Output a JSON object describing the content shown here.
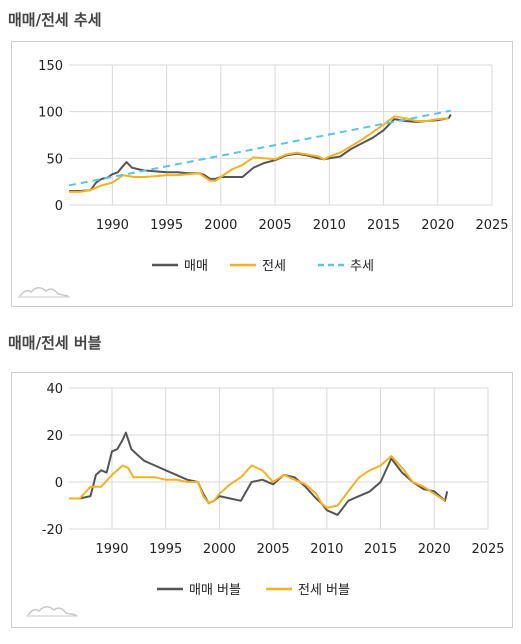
{
  "colors": {
    "sales": "#555555",
    "jeonse": "#f5b21e",
    "trend": "#5cc4e4",
    "grid": "#d9d9d9"
  },
  "chart_data": [
    {
      "type": "line",
      "title": "매매/전세 추세",
      "xlim": [
        1986,
        2025
      ],
      "ylim": [
        0,
        150
      ],
      "x_ticks": [
        1990,
        1995,
        2000,
        2005,
        2010,
        2015,
        2020,
        2025
      ],
      "y_ticks": [
        0,
        50,
        100,
        150
      ],
      "grid": true,
      "legend_position": "bottom",
      "series": [
        {
          "name": "매매",
          "color": "#555555",
          "dash": false,
          "x": [
            1986,
            1987,
            1988,
            1988.5,
            1989,
            1989.5,
            1990,
            1990.5,
            1991,
            1991.3,
            1991.8,
            1992.5,
            1993,
            1994,
            1995,
            1996,
            1997,
            1998,
            1998.5,
            1999,
            1999.5,
            2000,
            2001,
            2002,
            2003,
            2004,
            2005,
            2006,
            2007,
            2008,
            2009,
            2009.5,
            2010,
            2011,
            2012,
            2013,
            2014,
            2015,
            2016,
            2017,
            2018,
            2019,
            2020,
            2021,
            2021.2
          ],
          "y": [
            15,
            15,
            16,
            24,
            28,
            29,
            33,
            35,
            42,
            46,
            40,
            38,
            37,
            36,
            35,
            35,
            34,
            34,
            32,
            28,
            28,
            30,
            30,
            30,
            40,
            45,
            48,
            53,
            55,
            53,
            50,
            49,
            50,
            52,
            60,
            66,
            72,
            80,
            92,
            90,
            89,
            90,
            91,
            93,
            97
          ]
        },
        {
          "name": "전세",
          "color": "#f5b21e",
          "dash": false,
          "x": [
            1986,
            1987,
            1988,
            1989,
            1990,
            1990.5,
            1991,
            1991.5,
            1992,
            1993,
            1994,
            1995,
            1996,
            1997,
            1998,
            1998.5,
            1999,
            1999.5,
            2000,
            2001,
            2002,
            2003,
            2004,
            2005,
            2006,
            2007,
            2008,
            2009,
            2009.5,
            2010,
            2011,
            2012,
            2013,
            2014,
            2015,
            2016,
            2017,
            2018,
            2019,
            2020,
            2021
          ],
          "y": [
            14,
            14,
            16,
            21,
            24,
            28,
            32,
            31,
            30,
            30,
            31,
            32,
            32,
            33,
            34,
            30,
            26,
            26,
            30,
            38,
            43,
            51,
            50,
            49,
            54,
            56,
            54,
            52,
            49,
            52,
            56,
            63,
            70,
            78,
            86,
            95,
            93,
            90,
            90,
            92,
            93
          ]
        },
        {
          "name": "추세",
          "color": "#5cc4e4",
          "dash": true,
          "x": [
            1986,
            2021.2
          ],
          "y": [
            21,
            101
          ]
        }
      ]
    },
    {
      "type": "line",
      "title": "매매/전세 버블",
      "xlim": [
        1986,
        2025
      ],
      "ylim": [
        -20,
        40
      ],
      "x_ticks": [
        1990,
        1995,
        2000,
        2005,
        2010,
        2015,
        2020,
        2025
      ],
      "y_ticks": [
        -20,
        0,
        20,
        40
      ],
      "grid": true,
      "legend_position": "bottom",
      "series": [
        {
          "name": "매매 버블",
          "color": "#555555",
          "dash": false,
          "x": [
            1986,
            1987,
            1988,
            1988.5,
            1989,
            1989.5,
            1990,
            1990.5,
            1991,
            1991.3,
            1991.8,
            1992.5,
            1993,
            1994,
            1995,
            1996,
            1997,
            1998,
            1998.5,
            1999,
            1999.5,
            2000,
            2001,
            2002,
            2003,
            2004,
            2005,
            2006,
            2007,
            2008,
            2009,
            2009.5,
            2010,
            2011,
            2012,
            2013,
            2014,
            2015,
            2016,
            2017,
            2018,
            2019,
            2020,
            2021,
            2021.2
          ],
          "y": [
            -7,
            -7,
            -6,
            3,
            5,
            4,
            13,
            14,
            18,
            21,
            14,
            11,
            9,
            7,
            5,
            3,
            1,
            0,
            -5,
            -9,
            -8,
            -6,
            -7,
            -8,
            0,
            1,
            -1,
            3,
            2,
            -2,
            -7,
            -9,
            -12,
            -14,
            -8,
            -6,
            -4,
            0,
            10,
            4,
            0,
            -3,
            -4,
            -8,
            -4
          ]
        },
        {
          "name": "전세 버블",
          "color": "#f5b21e",
          "dash": false,
          "x": [
            1986,
            1987,
            1988,
            1989,
            1990,
            1990.5,
            1991,
            1991.5,
            1992,
            1993,
            1994,
            1995,
            1996,
            1997,
            1998,
            1998.5,
            1999,
            1999.5,
            2000,
            2001,
            2002,
            2003,
            2004,
            2005,
            2006,
            2007,
            2008,
            2009,
            2009.5,
            2010,
            2011,
            2012,
            2013,
            2014,
            2015,
            2016,
            2017,
            2018,
            2019,
            2020,
            2021
          ],
          "y": [
            -7,
            -7,
            -2,
            -2,
            3,
            5,
            7,
            6,
            2,
            2,
            2,
            1,
            1,
            0,
            0,
            -6,
            -9,
            -8,
            -5,
            -1,
            2,
            7,
            5,
            0,
            3,
            1,
            -1,
            -5,
            -9,
            -11,
            -10,
            -4,
            2,
            5,
            7,
            11,
            6,
            0,
            -2,
            -5,
            -8
          ]
        }
      ]
    }
  ]
}
